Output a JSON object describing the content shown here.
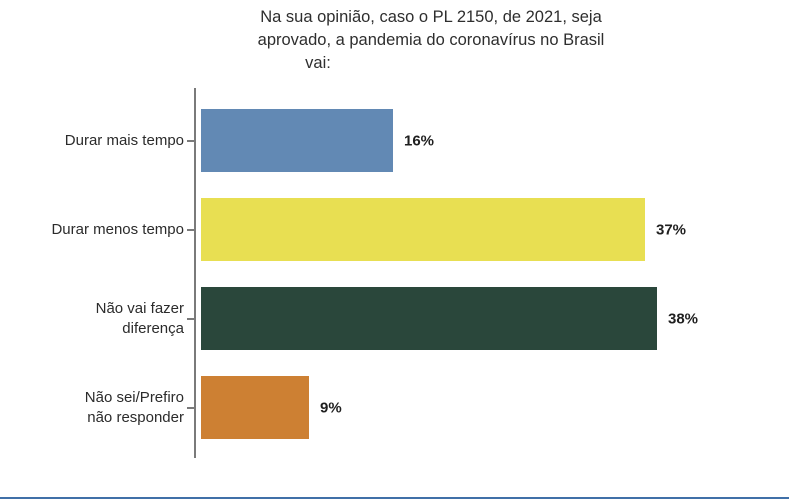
{
  "chart_data": {
    "type": "bar",
    "orientation": "horizontal",
    "title": "Na sua opinião, caso o PL 2150, de 2021, seja aprovado, a pandemia do coronavírus no Brasil vai:",
    "title_lines": [
      "Na sua opinião, caso o PL 2150, de 2021, seja",
      "aprovado, a pandemia do coronavírus no Brasil",
      "vai:"
    ],
    "categories": [
      "Durar mais tempo",
      "Durar menos tempo",
      "Não vai fazer diferença",
      "Não sei/Prefiro não responder"
    ],
    "category_lines": [
      [
        "Durar mais tempo"
      ],
      [
        "Durar menos tempo"
      ],
      [
        "Não vai fazer",
        "diferença"
      ],
      [
        "Não sei/Prefiro",
        "não responder"
      ]
    ],
    "values": [
      16,
      37,
      38,
      9
    ],
    "value_labels": [
      "16%",
      "37%",
      "38%",
      "9%"
    ],
    "bar_colors": [
      "#6289b4",
      "#e8df52",
      "#2a473b",
      "#cd8033"
    ],
    "xlabel": "",
    "ylabel": "",
    "xlim": [
      0,
      45
    ],
    "grid": false,
    "legend": false
  },
  "colors": {
    "axis": "#7a7a7a",
    "bottom_rule": "#4070a8",
    "title_text": "#2e2e2e",
    "label_text": "#2b2b2b",
    "background": "#ffffff"
  }
}
